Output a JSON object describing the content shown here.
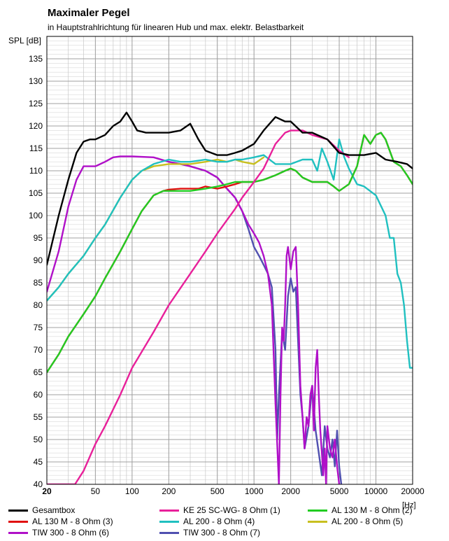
{
  "chart_data": {
    "type": "line",
    "title": "Maximaler Pegel",
    "subtitle": "in Hauptstrahlrichtung für linearen Hub und max. elektr. Belastbarkeit",
    "ylabel": "SPL [dB]",
    "xlabel": "[Hz]",
    "xscale": "log",
    "xlim": [
      20,
      20000
    ],
    "ylim": [
      40,
      140
    ],
    "x_ticks": [
      20,
      50,
      100,
      200,
      500,
      1000,
      2000,
      5000,
      10000,
      20000
    ],
    "x_tick_labels": [
      "20",
      "50",
      "100",
      "200",
      "500",
      "1000",
      "2000",
      "5000",
      "10000",
      "20000"
    ],
    "y_ticks": [
      40,
      45,
      50,
      55,
      60,
      65,
      70,
      75,
      80,
      85,
      90,
      95,
      100,
      105,
      110,
      115,
      120,
      125,
      130,
      135
    ],
    "y_tick_labels": [
      "40",
      "45",
      "50",
      "55",
      "60",
      "65",
      "70",
      "75",
      "80",
      "85",
      "90",
      "95",
      "100",
      "105",
      "110",
      "115",
      "120",
      "125",
      "130",
      "135"
    ],
    "grid": true,
    "legend_position": "bottom",
    "series": [
      {
        "name": "Gesamtbox",
        "color": "#000000",
        "x": [
          20,
          25,
          30,
          35,
          40,
          45,
          50,
          60,
          70,
          80,
          90,
          100,
          110,
          130,
          150,
          200,
          250,
          300,
          350,
          400,
          500,
          600,
          700,
          800,
          1000,
          1200,
          1500,
          1800,
          2000,
          2500,
          3000,
          4000,
          5000,
          6000,
          8000,
          10000,
          12000,
          15000,
          18000,
          20000
        ],
        "y": [
          89,
          100,
          108,
          114,
          116.5,
          117,
          117,
          118,
          120,
          121,
          123,
          121,
          119,
          118.5,
          118.5,
          118.5,
          119,
          120.5,
          117,
          114.5,
          113.5,
          113.5,
          114,
          114.5,
          116,
          119,
          122,
          121,
          121,
          118.5,
          118.5,
          117,
          114,
          113.5,
          113.5,
          114,
          112.5,
          112,
          111.5,
          110.5
        ]
      },
      {
        "name": "KE 25 SC-WG- 8 Ohm    (1)",
        "color": "#e8209a",
        "x": [
          20,
          34,
          40,
          50,
          60,
          80,
          100,
          150,
          200,
          300,
          400,
          500,
          600,
          700,
          800,
          1000,
          1200,
          1500,
          1800,
          2000,
          2500,
          3000,
          4000,
          5000,
          6000
        ],
        "y": [
          40,
          40,
          43,
          49,
          53,
          60,
          66,
          74,
          80,
          87,
          92,
          96,
          99,
          101.5,
          104,
          107.5,
          110.5,
          116,
          118.5,
          119,
          119,
          118,
          117,
          114.5,
          113
        ]
      },
      {
        "name": "AL 130 M - 8 Ohm (2)",
        "color": "#22cc22",
        "x": [
          20,
          25,
          30,
          40,
          50,
          60,
          80,
          100,
          120,
          150,
          180,
          200,
          250,
          300,
          400,
          500,
          600,
          700,
          800,
          1000,
          1200,
          1500,
          1800,
          2000,
          2200,
          2500,
          3000,
          3500,
          4000,
          4500,
          5000,
          6000,
          7000,
          8000,
          9000,
          10000,
          11000,
          12000,
          14000,
          16000,
          18000,
          20000
        ],
        "y": [
          65,
          69,
          73,
          78,
          82,
          86,
          92,
          97,
          101,
          104.5,
          105.5,
          105.5,
          105.5,
          105.5,
          106,
          106.5,
          107,
          107.5,
          107.5,
          107.5,
          108,
          109,
          110,
          110.5,
          110,
          108.5,
          107.5,
          107.5,
          107.5,
          106.5,
          105.5,
          107,
          111,
          118,
          116,
          118,
          118.5,
          117,
          112,
          111,
          109,
          107
        ]
      },
      {
        "name": "AL 130 M - 8 Ohm (3)",
        "color": "#e01010",
        "x": [
          20,
          25,
          30,
          40,
          50,
          60,
          80,
          100,
          120,
          150,
          180,
          200,
          250,
          300,
          350,
          400,
          500,
          600,
          700,
          800,
          1000,
          1200,
          1500,
          1800,
          2000,
          2200,
          2500,
          3000,
          3500,
          4000,
          4500,
          5000,
          6000,
          7000,
          8000,
          9000,
          10000,
          11000,
          12000,
          14000,
          16000,
          18000,
          20000
        ],
        "y": [
          65,
          69,
          73,
          78,
          82,
          86,
          92,
          97,
          101,
          104.5,
          105.5,
          105.8,
          106,
          106,
          106,
          106.5,
          106,
          106.5,
          107,
          107.5,
          107.5,
          108,
          109,
          110,
          110.5,
          110,
          108.5,
          107.5,
          107.5,
          107.5,
          106.5,
          105.5,
          107,
          111,
          118,
          116,
          118,
          118.5,
          117,
          112,
          111,
          109,
          107
        ]
      },
      {
        "name": "AL 200 - 8 Ohm (4)",
        "color": "#20c0c0",
        "x": [
          20,
          25,
          30,
          40,
          50,
          60,
          80,
          100,
          120,
          150,
          200,
          250,
          300,
          400,
          500,
          600,
          700,
          800,
          1000,
          1200,
          1500,
          2000,
          2500,
          3000,
          3300,
          3600,
          4000,
          4500,
          5000,
          5500,
          6000,
          7000,
          8000,
          10000,
          12000,
          13000,
          14000,
          15000,
          16000,
          17000,
          18000,
          19000,
          20000
        ],
        "y": [
          81,
          84,
          87,
          91,
          95,
          98,
          104,
          108,
          110,
          111.5,
          112.5,
          112,
          112,
          112.5,
          112,
          112,
          112.5,
          112.5,
          113,
          113.5,
          111.5,
          111.5,
          112.5,
          112.5,
          110,
          115,
          112,
          108,
          117,
          113,
          110.5,
          107,
          106.5,
          104.5,
          100,
          95,
          95,
          87,
          85,
          80,
          72,
          66,
          66
        ]
      },
      {
        "name": "AL 200 - 8 Ohm (5)",
        "color": "#c8c020",
        "x": [
          20,
          25,
          30,
          40,
          50,
          60,
          80,
          100,
          120,
          150,
          200,
          250,
          300,
          400,
          500,
          600,
          700,
          800,
          1000,
          1200
        ],
        "y": [
          81,
          84,
          87,
          91,
          95,
          98,
          104,
          108,
          110,
          111,
          111.5,
          111.5,
          111.5,
          112,
          112.5,
          112,
          112.5,
          112,
          111.5,
          113
        ]
      },
      {
        "name": "TIW 300 - 8 Ohm (6)",
        "color": "#b010c8",
        "x": [
          20,
          25,
          30,
          35,
          40,
          50,
          60,
          70,
          80,
          100,
          150,
          200,
          250,
          300,
          400,
          500,
          600,
          700,
          800,
          900,
          1000,
          1100,
          1200,
          1300,
          1400,
          1500,
          1600,
          1650,
          1700,
          1750,
          1800,
          1850,
          1900,
          2000,
          2100,
          2200,
          2300,
          2400,
          2500,
          2600,
          2700,
          2800,
          2900,
          3000,
          3100,
          3200,
          3300,
          3400,
          3500,
          3600,
          3700,
          3800,
          3900,
          4000,
          4200,
          4400,
          4600,
          4800,
          5000
        ],
        "y": [
          83,
          92,
          102,
          108,
          111,
          111,
          112,
          113,
          113.2,
          113.2,
          113,
          112,
          111.5,
          111,
          110,
          108.5,
          106,
          104,
          101,
          98,
          96,
          94,
          91,
          87,
          80,
          58,
          40,
          60,
          75,
          72,
          80,
          91,
          93,
          88,
          92,
          93,
          80,
          62,
          55,
          48,
          55,
          53,
          60,
          62,
          52,
          66,
          70,
          60,
          52,
          47,
          42,
          48,
          40,
          53,
          48,
          46,
          50,
          44,
          40
        ]
      },
      {
        "name": "TIW 300 - 8 Ohm (7)",
        "color": "#5050b0",
        "x": [
          200,
          250,
          300,
          400,
          500,
          600,
          700,
          800,
          900,
          1000,
          1100,
          1200,
          1300,
          1400,
          1500,
          1550,
          1600,
          1700,
          1800,
          1900,
          2000,
          2100,
          2200,
          2300,
          2400,
          2500,
          2600,
          2800,
          3000,
          3200,
          3400,
          3600,
          3800,
          4000,
          4200,
          4400,
          4600,
          4800,
          5000,
          5200
        ],
        "y": [
          112,
          111.5,
          111,
          110,
          108.5,
          106,
          104,
          101,
          97,
          93,
          91,
          89,
          87,
          84,
          70,
          50,
          60,
          74,
          70,
          82,
          86,
          83,
          84,
          72,
          60,
          55,
          48,
          53,
          62,
          52,
          47,
          42,
          53,
          48,
          46,
          50,
          44,
          52,
          44,
          40
        ]
      }
    ]
  },
  "legend_labels": {
    "s0": "Gesamtbox",
    "s1": "KE 25 SC-WG- 8 Ohm    (1)",
    "s2": "AL 130 M - 8 Ohm (2)",
    "s3": "AL 130 M - 8 Ohm (3)",
    "s4": "AL 200 - 8 Ohm (4)",
    "s5": "AL 200 - 8 Ohm (5)",
    "s6": "TIW 300 - 8 Ohm (6)",
    "s7": "TIW 300 - 8 Ohm (7)"
  }
}
